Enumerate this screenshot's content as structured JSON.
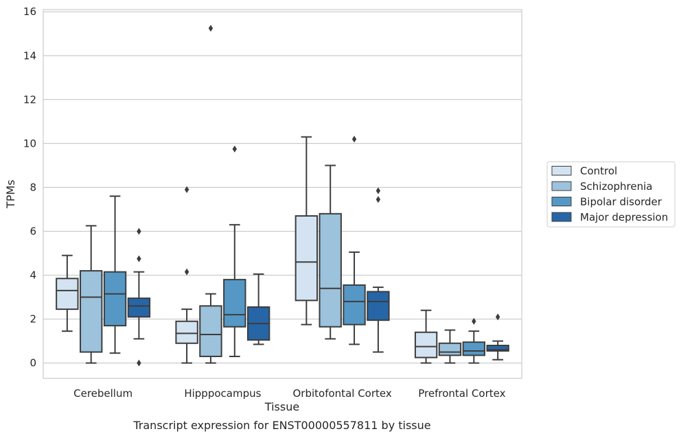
{
  "chart_data": {
    "type": "boxplot",
    "title": "",
    "caption": "Transcript expression for ENST00000557811 by tissue",
    "xlabel": "Tissue",
    "ylabel": "TPMs",
    "ylim": [
      -0.7,
      16.1
    ],
    "yticks": [
      0,
      2,
      4,
      6,
      8,
      10,
      12,
      14,
      16
    ],
    "grid": "horizontal",
    "legend_position": "right",
    "categories": [
      "Cerebellum",
      "Hipppocampus",
      "Orbitofontal Cortex",
      "Prefrontal Cortex"
    ],
    "series": [
      {
        "name": "Control",
        "color": "#d3e3f2",
        "boxes": [
          {
            "whislo": 1.45,
            "q1": 2.45,
            "med": 3.3,
            "q3": 3.85,
            "whishi": 4.9,
            "fliers": []
          },
          {
            "whislo": 0.0,
            "q1": 0.9,
            "med": 1.35,
            "q3": 1.9,
            "whishi": 2.45,
            "fliers": [
              4.15,
              7.9
            ]
          },
          {
            "whislo": 1.75,
            "q1": 2.85,
            "med": 4.6,
            "q3": 6.7,
            "whishi": 10.3,
            "fliers": []
          },
          {
            "whislo": 0.0,
            "q1": 0.25,
            "med": 0.75,
            "q3": 1.4,
            "whishi": 2.4,
            "fliers": []
          }
        ]
      },
      {
        "name": "Schizophrenia",
        "color": "#9cc2dc",
        "boxes": [
          {
            "whislo": 0.0,
            "q1": 0.5,
            "med": 3.0,
            "q3": 4.2,
            "whishi": 6.25,
            "fliers": []
          },
          {
            "whislo": 0.0,
            "q1": 0.3,
            "med": 1.3,
            "q3": 2.6,
            "whishi": 3.15,
            "fliers": [
              15.25
            ]
          },
          {
            "whislo": 1.1,
            "q1": 1.65,
            "med": 3.4,
            "q3": 6.8,
            "whishi": 9.0,
            "fliers": []
          },
          {
            "whislo": 0.0,
            "q1": 0.35,
            "med": 0.5,
            "q3": 0.9,
            "whishi": 1.5,
            "fliers": []
          }
        ]
      },
      {
        "name": "Bipolar disorder",
        "color": "#5598c6",
        "boxes": [
          {
            "whislo": 0.45,
            "q1": 1.7,
            "med": 3.15,
            "q3": 4.15,
            "whishi": 7.6,
            "fliers": []
          },
          {
            "whislo": 0.3,
            "q1": 1.65,
            "med": 2.2,
            "q3": 3.8,
            "whishi": 6.3,
            "fliers": [
              9.75
            ]
          },
          {
            "whislo": 0.85,
            "q1": 1.75,
            "med": 2.8,
            "q3": 3.55,
            "whishi": 5.05,
            "fliers": [
              10.2
            ]
          },
          {
            "whislo": 0.0,
            "q1": 0.35,
            "med": 0.55,
            "q3": 0.95,
            "whishi": 1.45,
            "fliers": [
              1.9
            ]
          }
        ]
      },
      {
        "name": "Major depression",
        "color": "#2666a6",
        "boxes": [
          {
            "whislo": 1.1,
            "q1": 2.1,
            "med": 2.6,
            "q3": 2.95,
            "whishi": 4.15,
            "fliers": [
              0.0,
              4.75,
              6.0
            ]
          },
          {
            "whislo": 0.85,
            "q1": 1.05,
            "med": 1.8,
            "q3": 2.55,
            "whishi": 4.05,
            "fliers": []
          },
          {
            "whislo": 0.5,
            "q1": 1.95,
            "med": 2.8,
            "q3": 3.25,
            "whishi": 3.45,
            "fliers": [
              7.45,
              7.85
            ]
          },
          {
            "whislo": 0.15,
            "q1": 0.55,
            "med": 0.6,
            "q3": 0.8,
            "whishi": 1.0,
            "fliers": [
              2.1
            ]
          }
        ]
      }
    ]
  }
}
